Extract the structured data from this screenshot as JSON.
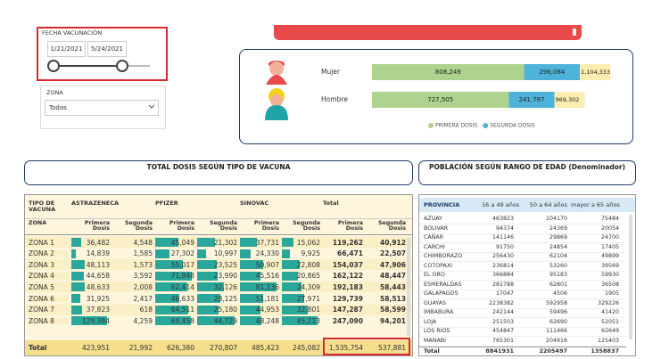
{
  "slicer": {
    "title": "FECHA VACUNACIÓN",
    "start": "1/21/2021",
    "end": "5/24/2021"
  },
  "zone_filter": {
    "title": "ZONA",
    "value": "Todas"
  },
  "chart_data": {
    "type": "bar",
    "orientation": "horizontal",
    "stacked": true,
    "categories": [
      "Mujer",
      "Hombre"
    ],
    "series": [
      {
        "name": "PRIMERA DOSIS",
        "color": "#aed38e",
        "values": [
          808249,
          727505
        ],
        "value_labels": [
          "808,249",
          "727,505"
        ]
      },
      {
        "name": "SEGUNDA DOSIS",
        "color": "#4fb3d9",
        "values": [
          296084,
          241797
        ],
        "value_labels": [
          "296,084",
          "241,797"
        ]
      }
    ],
    "totals": {
      "values": [
        1104333,
        969302
      ],
      "value_labels": [
        "1,104,333",
        "969,302"
      ]
    },
    "legend": "bottom"
  },
  "vaccine_table": {
    "title": "TOTAL DOSIS SEGÚN TIPO DE VACUNA",
    "header": [
      "TIPO DE VACUNA",
      "ASTRAZENECA",
      "PFIZER",
      "SINOVAC",
      "Total"
    ],
    "subheader": [
      "ZONA",
      "Primera Dosis",
      "Segunda Dosis",
      "Primera Dosis",
      "Segunda Dosis",
      "Primera Dosis",
      "Segunda Dosis",
      "Primera Dosis",
      "Segunda Dosis"
    ],
    "rows": [
      [
        "ZONA 1",
        "36,482",
        "4,548",
        "45,049",
        "21,302",
        "37,731",
        "15,062",
        "119,262",
        "40,912"
      ],
      [
        "ZONA 2",
        "14,839",
        "1,585",
        "27,302",
        "10,997",
        "24,330",
        "9,925",
        "66,471",
        "22,507"
      ],
      [
        "ZONA 3",
        "48,113",
        "1,573",
        "55,017",
        "23,525",
        "50,907",
        "22,808",
        "154,037",
        "47,906"
      ],
      [
        "ZONA 4",
        "44,658",
        "3,592",
        "71,948",
        "23,990",
        "45,516",
        "20,865",
        "162,122",
        "48,447"
      ],
      [
        "ZONA 5",
        "48,633",
        "2,008",
        "62,414",
        "32,126",
        "81,136",
        "24,309",
        "192,183",
        "58,443"
      ],
      [
        "ZONA 6",
        "31,925",
        "2,417",
        "46,633",
        "28,125",
        "51,181",
        "27,971",
        "129,739",
        "58,513"
      ],
      [
        "ZONA 7",
        "37,823",
        "618",
        "64,511",
        "25,180",
        "44,953",
        "32,801",
        "147,287",
        "58,599"
      ],
      [
        "ZONA 8",
        "129,384",
        "4,259",
        "69,458",
        "44,729",
        "48,248",
        "45,213",
        "247,090",
        "94,201"
      ]
    ],
    "total": [
      "Total",
      "423,951",
      "21,992",
      "626,380",
      "270,807",
      "485,423",
      "245,082",
      "1,535,754",
      "537,881"
    ]
  },
  "age_table": {
    "title": "POBLACIÓN SEGÚN RANGO DE EDAD (Denominador)",
    "header": [
      "PROVINCIA",
      "16 a 49 años",
      "50 a 64 años",
      "mayor a 65 años"
    ],
    "rows": [
      [
        "AZUAY",
        "463823",
        "104170",
        "75484"
      ],
      [
        "BOLIVAR",
        "94374",
        "24369",
        "20054"
      ],
      [
        "CAÑAR",
        "141146",
        "29869",
        "24700"
      ],
      [
        "CARCHI",
        "91750",
        "24854",
        "17405"
      ],
      [
        "CHIMBORAZO",
        "256430",
        "62104",
        "49899"
      ],
      [
        "COTOPAXI",
        "236814",
        "53260",
        "39569"
      ],
      [
        "EL ORO",
        "366884",
        "95183",
        "59930"
      ],
      [
        "ESMERALDAS",
        "281788",
        "62801",
        "36508"
      ],
      [
        "GALAPAGOS",
        "17047",
        "4506",
        "1905"
      ],
      [
        "GUAYAS",
        "2238382",
        "592958",
        "329226"
      ],
      [
        "IMBABURA",
        "242144",
        "59496",
        "41420"
      ],
      [
        "LOJA",
        "251503",
        "62690",
        "52051"
      ],
      [
        "LOS RIOS",
        "454847",
        "111466",
        "62649"
      ],
      [
        "MANABI",
        "765301",
        "204916",
        "125403"
      ]
    ],
    "total": [
      "Total",
      "8841931",
      "2205497",
      "1358837"
    ]
  }
}
